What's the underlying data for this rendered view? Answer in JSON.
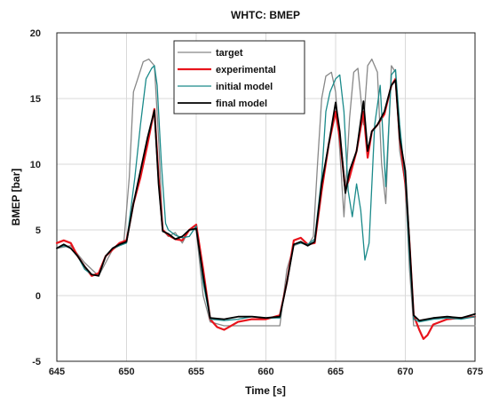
{
  "chart_data": {
    "type": "line",
    "title": "WHTC: BMEP",
    "xlabel": "Time [s]",
    "ylabel": "BMEP [bar]",
    "xlim": [
      645,
      675
    ],
    "ylim": [
      -5,
      20
    ],
    "xticks": [
      645,
      650,
      655,
      660,
      665,
      670,
      675
    ],
    "yticks": [
      -5,
      0,
      5,
      10,
      15,
      20
    ],
    "grid": true,
    "legend_position": "top-center",
    "series": [
      {
        "name": "target",
        "color": "#888888",
        "x": [
          645,
          646,
          647,
          648,
          649,
          649.8,
          650.2,
          650.5,
          650.8,
          651.2,
          651.6,
          652.0,
          652.3,
          652.6,
          653.0,
          653.5,
          654.0,
          654.5,
          655.0,
          655.5,
          656.0,
          657.0,
          658.0,
          660.0,
          661.0,
          661.5,
          662.0,
          662.5,
          663.0,
          663.4,
          663.7,
          664.0,
          664.3,
          664.7,
          665.0,
          665.3,
          665.6,
          666.0,
          666.3,
          666.6,
          667.0,
          667.3,
          667.6,
          668.0,
          668.3,
          668.6,
          669.0,
          669.3,
          669.6,
          670.0,
          670.3,
          670.6,
          671.0,
          672.0,
          673.0,
          674.0,
          675.0
        ],
        "y": [
          3.6,
          3.8,
          2.5,
          1.5,
          3.5,
          4.0,
          9.0,
          15.5,
          16.5,
          17.8,
          18.0,
          17.5,
          12.0,
          5.0,
          4.5,
          4.8,
          4.0,
          5.0,
          5.0,
          0.0,
          -2.0,
          -2.3,
          -2.3,
          -2.3,
          -2.3,
          2.0,
          3.8,
          4.0,
          3.8,
          4.5,
          10.0,
          15.0,
          16.7,
          17.0,
          15.5,
          11.0,
          6.0,
          13.5,
          17.0,
          17.3,
          13.0,
          17.5,
          18.0,
          17.0,
          10.0,
          7.0,
          17.5,
          17.0,
          11.0,
          8.5,
          2.0,
          -2.3,
          -2.3,
          -2.3,
          -2.3,
          -2.3,
          -2.3
        ]
      },
      {
        "name": "experimental",
        "color": "#e8141c",
        "x": [
          645,
          645.5,
          646,
          646.5,
          647,
          647.5,
          648,
          648.5,
          649,
          649.5,
          650,
          650.5,
          651,
          651.5,
          652,
          652.3,
          652.6,
          653,
          653.5,
          654,
          654.5,
          655,
          655.5,
          656,
          656.5,
          657,
          658,
          659,
          660,
          661,
          661.5,
          662,
          662.5,
          663,
          663.5,
          664,
          664.5,
          665,
          665.3,
          665.7,
          666,
          666.5,
          667,
          667.3,
          667.6,
          668,
          668.5,
          669,
          669.3,
          669.6,
          670,
          670.3,
          670.6,
          671,
          671.3,
          671.6,
          672,
          673,
          674,
          675
        ],
        "y": [
          4.0,
          4.2,
          4.0,
          3.0,
          2.2,
          1.5,
          1.7,
          3.0,
          3.5,
          4.0,
          4.2,
          7.0,
          9.0,
          11.5,
          14.2,
          9.0,
          5.0,
          4.6,
          4.3,
          4.2,
          5.0,
          5.4,
          2.0,
          -1.8,
          -2.4,
          -2.6,
          -2.0,
          -1.8,
          -1.8,
          -1.5,
          1.0,
          4.2,
          4.4,
          3.9,
          4.0,
          8.0,
          11.5,
          14.0,
          12.0,
          8.0,
          9.0,
          11.0,
          14.0,
          10.5,
          12.5,
          13.0,
          13.8,
          16.0,
          16.5,
          12.0,
          8.5,
          4.0,
          -1.5,
          -2.6,
          -3.3,
          -3.0,
          -2.2,
          -1.8,
          -1.7,
          -1.6
        ]
      },
      {
        "name": "initial model",
        "color": "#1a8a8a",
        "x": [
          645,
          645.5,
          646,
          646.5,
          647,
          647.5,
          648,
          648.5,
          649,
          649.5,
          650,
          650.3,
          650.6,
          651,
          651.4,
          651.8,
          652,
          652.2,
          652.5,
          652.8,
          653,
          653.5,
          654,
          654.5,
          655,
          655.5,
          656,
          657,
          658,
          659,
          660,
          661,
          661.5,
          662,
          662.5,
          663,
          663.5,
          664,
          664.3,
          664.6,
          665,
          665.3,
          665.6,
          665.9,
          666.2,
          666.5,
          666.8,
          667.1,
          667.4,
          667.8,
          668.2,
          668.6,
          669.0,
          669.3,
          669.6,
          670,
          670.3,
          670.6,
          671,
          672,
          673,
          674,
          675
        ],
        "y": [
          3.6,
          3.8,
          3.6,
          3.0,
          2.0,
          1.6,
          1.5,
          3.0,
          3.6,
          3.8,
          4.0,
          6.5,
          9.0,
          13.0,
          16.5,
          17.3,
          17.5,
          16.0,
          10.0,
          5.5,
          5.0,
          4.6,
          4.4,
          4.5,
          5.3,
          1.0,
          -1.8,
          -1.9,
          -1.8,
          -1.6,
          -1.7,
          -1.7,
          1.0,
          3.9,
          4.0,
          3.9,
          4.3,
          9.0,
          14.0,
          15.5,
          16.5,
          16.8,
          14.0,
          8.0,
          6.0,
          8.5,
          6.5,
          2.7,
          4.0,
          13.0,
          16.0,
          8.3,
          16.8,
          17.2,
          13.0,
          8.7,
          3.0,
          -1.8,
          -2.0,
          -1.8,
          -1.7,
          -1.8,
          -1.6
        ]
      },
      {
        "name": "final model",
        "color": "#000000",
        "x": [
          645,
          645.5,
          646,
          646.5,
          647,
          647.5,
          648,
          648.5,
          649,
          649.5,
          650,
          650.5,
          651,
          651.5,
          652,
          652.3,
          652.6,
          653,
          653.5,
          654,
          654.5,
          655,
          655.5,
          656,
          657,
          658,
          659,
          660,
          661,
          661.5,
          662,
          662.5,
          663,
          663.5,
          664,
          664.5,
          665,
          665.3,
          665.7,
          666,
          666.5,
          667,
          667.3,
          667.6,
          668,
          668.5,
          669,
          669.3,
          669.6,
          670,
          670.3,
          670.6,
          671,
          672,
          673,
          674,
          675
        ],
        "y": [
          3.6,
          3.9,
          3.6,
          3.0,
          2.2,
          1.6,
          1.5,
          3.0,
          3.6,
          3.9,
          4.1,
          7.0,
          9.5,
          12.0,
          14.1,
          8.5,
          4.9,
          4.7,
          4.3,
          4.5,
          5.0,
          5.1,
          1.5,
          -1.7,
          -1.8,
          -1.6,
          -1.6,
          -1.7,
          -1.6,
          1.0,
          3.9,
          4.1,
          3.8,
          4.1,
          8.5,
          11.5,
          14.7,
          12.5,
          7.8,
          9.5,
          11.0,
          14.8,
          11.0,
          12.5,
          13.0,
          14.0,
          16.0,
          16.4,
          12.0,
          9.5,
          4.0,
          -1.5,
          -1.9,
          -1.7,
          -1.6,
          -1.7,
          -1.4
        ]
      }
    ]
  }
}
